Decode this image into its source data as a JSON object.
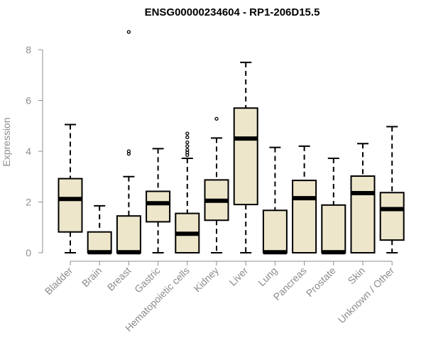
{
  "chart_data": {
    "type": "boxplot",
    "title": "ENSG00000234604 - RP1-206D15.5",
    "xlabel": "",
    "ylabel": "Expression",
    "ylim": [
      0,
      8
    ],
    "yticks": [
      0,
      2,
      4,
      6,
      8
    ],
    "grid": false,
    "box_fill": "#ede6cb",
    "categories": [
      "Bladder",
      "Brain",
      "Breast",
      "Gastric",
      "Hematopoietic cells",
      "Kidney",
      "Liver",
      "Lung",
      "Pancreas",
      "Prostate",
      "Skin",
      "Unknown / Other"
    ],
    "boxes": [
      {
        "category": "Bladder",
        "whisker_low": 0.0,
        "q1": 0.82,
        "median": 2.12,
        "q3": 2.92,
        "whisker_high": 5.05,
        "outliers": []
      },
      {
        "category": "Brain",
        "whisker_low": 0.0,
        "q1": 0.0,
        "median": 0.02,
        "q3": 0.82,
        "whisker_high": 1.85,
        "outliers": []
      },
      {
        "category": "Breast",
        "whisker_low": 0.0,
        "q1": 0.0,
        "median": 0.02,
        "q3": 1.45,
        "whisker_high": 3.0,
        "outliers": [
          3.9,
          4.0,
          8.7
        ]
      },
      {
        "category": "Gastric",
        "whisker_low": 0.0,
        "q1": 1.22,
        "median": 1.95,
        "q3": 2.42,
        "whisker_high": 4.1,
        "outliers": []
      },
      {
        "category": "Hematopoietic cells",
        "whisker_low": 0.0,
        "q1": 0.0,
        "median": 0.75,
        "q3": 1.55,
        "whisker_high": 3.72,
        "outliers": [
          3.85,
          3.95,
          4.05,
          4.2,
          4.35,
          4.55,
          4.7
        ]
      },
      {
        "category": "Kidney",
        "whisker_low": 0.0,
        "q1": 1.28,
        "median": 2.05,
        "q3": 2.87,
        "whisker_high": 4.52,
        "outliers": [
          5.28
        ]
      },
      {
        "category": "Liver",
        "whisker_low": 0.0,
        "q1": 1.9,
        "median": 4.5,
        "q3": 5.7,
        "whisker_high": 7.5,
        "outliers": []
      },
      {
        "category": "Lung",
        "whisker_low": 0.0,
        "q1": 0.0,
        "median": 0.02,
        "q3": 1.67,
        "whisker_high": 4.15,
        "outliers": []
      },
      {
        "category": "Pancreas",
        "whisker_low": 0.0,
        "q1": 0.0,
        "median": 2.15,
        "q3": 2.85,
        "whisker_high": 4.2,
        "outliers": []
      },
      {
        "category": "Prostate",
        "whisker_low": 0.0,
        "q1": 0.0,
        "median": 0.02,
        "q3": 1.88,
        "whisker_high": 3.72,
        "outliers": []
      },
      {
        "category": "Skin",
        "whisker_low": 0.0,
        "q1": 0.0,
        "median": 2.35,
        "q3": 3.02,
        "whisker_high": 4.3,
        "outliers": []
      },
      {
        "category": "Unknown / Other",
        "whisker_low": 0.0,
        "q1": 0.5,
        "median": 1.72,
        "q3": 2.37,
        "whisker_high": 4.97,
        "outliers": []
      }
    ]
  }
}
